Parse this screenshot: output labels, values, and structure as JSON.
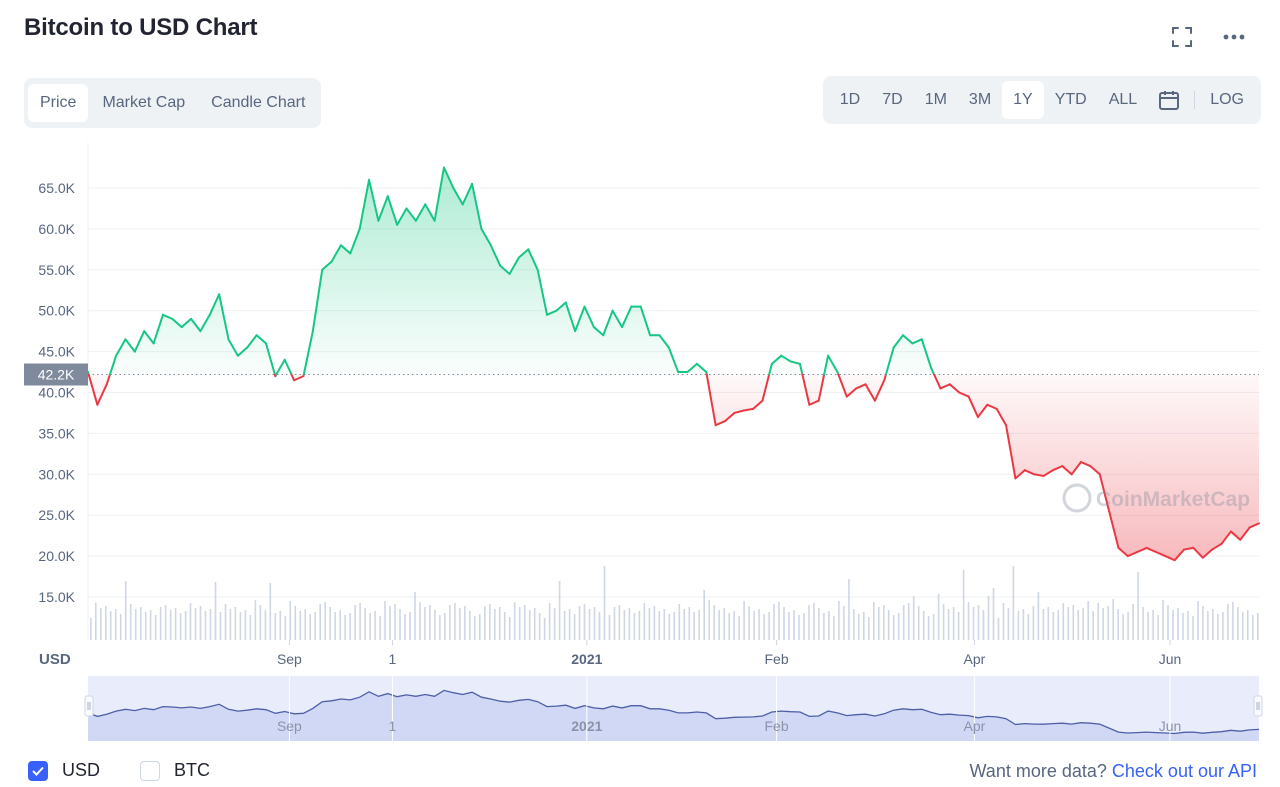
{
  "header": {
    "title": "Bitcoin to USD Chart",
    "expand_icon": "expand-icon",
    "more_icon": "more-dots-icon"
  },
  "tabs": [
    "Price",
    "Market Cap",
    "Candle Chart"
  ],
  "active_tab": "Price",
  "ranges": [
    "1D",
    "7D",
    "1M",
    "3M",
    "1Y",
    "YTD",
    "ALL"
  ],
  "active_range": "1Y",
  "calendar_icon": "calendar-icon",
  "log_label": "LOG",
  "colors": {
    "up": "#16c784",
    "down": "#ea3943",
    "accent": "#3861fb",
    "navigator_fill": "#e8ecfb",
    "navigator_line": "#4e5fa8"
  },
  "chart_data": {
    "type": "area",
    "title": "Bitcoin to USD Chart",
    "currency_label": "USD",
    "ylabel": "",
    "y_ticks": [
      "65.0K",
      "60.0K",
      "55.0K",
      "50.0K",
      "45.0K",
      "40.0K",
      "35.0K",
      "30.0K",
      "25.0K",
      "20.0K",
      "15.0K"
    ],
    "ylim": [
      11000,
      68000
    ],
    "x_ticks": [
      {
        "label": "Sep",
        "t": 0.172,
        "bold": false
      },
      {
        "label": "1",
        "t": 0.26,
        "bold": false
      },
      {
        "label": "2021",
        "t": 0.426,
        "bold": true
      },
      {
        "label": "Feb",
        "t": 0.588,
        "bold": false
      },
      {
        "label": "Apr",
        "t": 0.757,
        "bold": false
      },
      {
        "label": "Jun",
        "t": 0.924,
        "bold": false
      }
    ],
    "reference_value": 42200,
    "reference_label": "42.2K",
    "series": [
      {
        "values": [
          42500,
          38500,
          41000,
          44500,
          46500,
          45000,
          47500,
          46000,
          49500,
          49000,
          48000,
          49000,
          47500,
          49500,
          52000,
          46500,
          44500,
          45500,
          47000,
          46000,
          42000,
          44000,
          41500,
          42000,
          47500,
          55000,
          56000,
          58000,
          57000,
          60000,
          66000,
          61000,
          64000,
          60500,
          62500,
          61000,
          63000,
          61000,
          67500,
          65000,
          63000,
          65500,
          60000,
          58000,
          55500,
          54500,
          56500,
          57500,
          55000,
          49500,
          50000,
          51000,
          47500,
          50500,
          48000,
          47000,
          50000,
          48000,
          50500,
          50500,
          47000,
          47000,
          45500,
          42500,
          42500,
          43500,
          42500,
          36000,
          36500,
          37500,
          37800,
          38000,
          39000,
          43500,
          44500,
          43800,
          43500,
          38500,
          39000,
          44500,
          42500,
          39500,
          40500,
          41000,
          39000,
          41500,
          45500,
          47000,
          46000,
          46500,
          43000,
          40500,
          41000,
          40000,
          39500,
          37000,
          38500,
          38000,
          36000,
          29500,
          30500,
          30000,
          29800,
          30500,
          31000,
          30000,
          31500,
          31000,
          30000,
          25500,
          21000,
          20000,
          20500,
          21000,
          20500,
          20000,
          19500,
          20800,
          21000,
          19800,
          20800,
          21500,
          23000,
          22000,
          23500,
          24000
        ],
        "up_color": "#16c784",
        "down_color": "#ea3943"
      }
    ],
    "volume": "bars",
    "grid": true
  },
  "footer": {
    "usd_label": "USD",
    "btc_label": "BTC",
    "usd_checked": true,
    "btc_checked": false,
    "more_text": "Want more data?",
    "api_link": "Check out our API"
  },
  "watermark": "CoinMarketCap"
}
